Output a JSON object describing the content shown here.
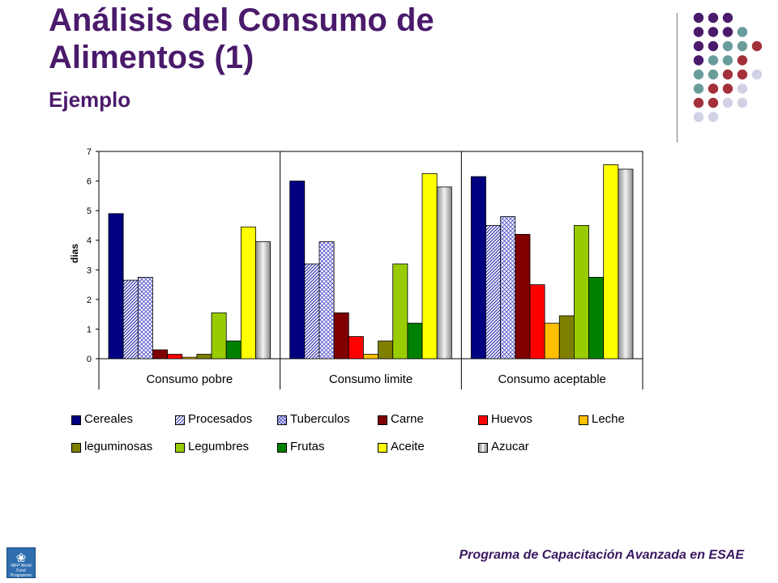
{
  "slide": {
    "title_line1": "Análisis del Consumo de",
    "title_line2": "Alimentos (1)",
    "subtitle": "Ejemplo",
    "footer": "Programa de Capacitación Avanzada en ESAE"
  },
  "logo": {
    "icon": "wfp-emblem-icon",
    "text": "WFP World Food Programme",
    "color": "#2f6fb0"
  },
  "decoration": {
    "dot_colors": {
      "P": "#4a1a6b",
      "T": "#6a9c9c",
      "R": "#a3303a",
      "L": "#d2d2e6"
    },
    "dot_rows": [
      "PPP",
      "PPPT",
      "PPTTR",
      "PTTR",
      "TTRRL",
      "TRRL",
      "RRLL",
      "LL"
    ]
  },
  "chart_data": {
    "type": "bar",
    "title": "",
    "xlabel": "",
    "ylabel": "dias",
    "ylim": [
      0,
      7
    ],
    "yticks": [
      "0",
      "1",
      "2",
      "3",
      "4",
      "5",
      "6",
      "7"
    ],
    "grid": false,
    "legend_position": "bottom",
    "categories": [
      "Consumo pobre",
      "Consumo limite",
      "Consumo aceptable"
    ],
    "series": [
      {
        "name": "Cereales",
        "color": "#000080",
        "pattern": "solid",
        "values": [
          4.9,
          6.0,
          6.15
        ]
      },
      {
        "name": "Procesados",
        "color": "#3a3ab0",
        "pattern": "diag",
        "values": [
          2.65,
          3.2,
          4.5
        ]
      },
      {
        "name": "Tuberculos",
        "color": "#5050c8",
        "pattern": "cross",
        "values": [
          2.75,
          3.95,
          4.8
        ]
      },
      {
        "name": "Carne",
        "color": "#800000",
        "pattern": "solid",
        "values": [
          0.3,
          1.55,
          4.2
        ]
      },
      {
        "name": "Huevos",
        "color": "#ff0000",
        "pattern": "solid",
        "values": [
          0.15,
          0.75,
          2.5
        ]
      },
      {
        "name": "Leche",
        "color": "#ffc000",
        "pattern": "solid",
        "values": [
          0.05,
          0.15,
          1.2
        ]
      },
      {
        "name": "leguminosas",
        "color": "#808000",
        "pattern": "solid",
        "values": [
          0.15,
          0.6,
          1.45
        ]
      },
      {
        "name": "Legumbres",
        "color": "#99cc00",
        "pattern": "solid",
        "values": [
          1.55,
          3.2,
          4.5
        ]
      },
      {
        "name": "Frutas",
        "color": "#008000",
        "pattern": "solid",
        "values": [
          0.6,
          1.2,
          2.75
        ]
      },
      {
        "name": "Aceite",
        "color": "#ffff00",
        "pattern": "solid",
        "values": [
          4.45,
          6.25,
          6.55
        ]
      },
      {
        "name": "Azucar",
        "color": "#c0c0c0",
        "pattern": "gradient",
        "values": [
          3.95,
          5.8,
          6.4
        ]
      }
    ]
  }
}
